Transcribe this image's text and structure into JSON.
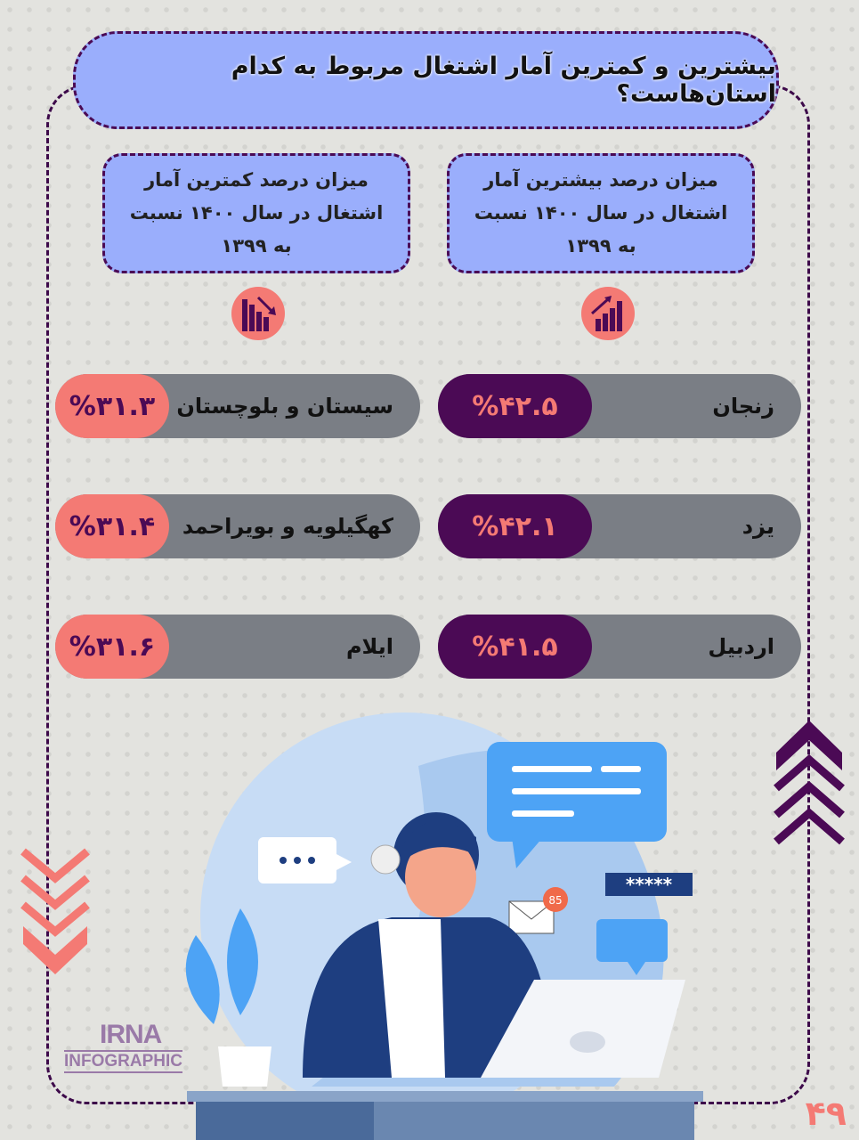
{
  "title": "بیشترین و کمترین آمار اشتغال مربوط به کدام استان‌هاست؟",
  "highest": {
    "heading": "میزان درصد بیشترین آمار اشتغال در سال ۱۴۰۰ نسبت به ۱۳۹۹",
    "icon": "chart-up-icon",
    "rows": [
      {
        "province": "زنجان",
        "value": "%۴۲.۵"
      },
      {
        "province": "یزد",
        "value": "%۴۲.۱"
      },
      {
        "province": "اردبیل",
        "value": "%۴۱.۵"
      }
    ]
  },
  "lowest": {
    "heading": "میزان درصد کمترین آمار اشتغال در سال ۱۴۰۰ نسبت به ۱۳۹۹",
    "icon": "chart-down-icon",
    "rows": [
      {
        "province": "سیستان و بلوچستان",
        "value": "%۳۱.۳"
      },
      {
        "province": "کهگیلویه و بویراحمد",
        "value": "%۳۱.۴"
      },
      {
        "province": "ایلام",
        "value": "%۳۱.۶"
      }
    ]
  },
  "illustration": {
    "mail_badge": "85",
    "password": "*****"
  },
  "logo": {
    "brand": "IRNA",
    "sub": "INFOGRAPHIC"
  },
  "page_number": "۴۹",
  "colors": {
    "purple": "#4b0a55",
    "pink": "#f47a74",
    "lavender": "#9aaefc",
    "bar": "#7a7e85"
  }
}
